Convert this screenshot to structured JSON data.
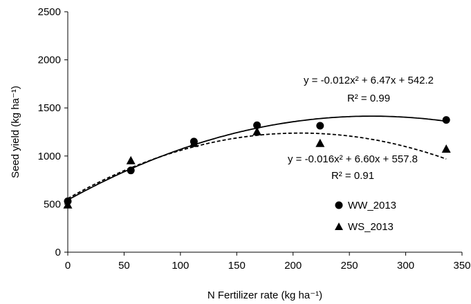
{
  "chart_data": {
    "type": "scatter",
    "xlabel": "N Fertilizer rate (kg ha⁻¹)",
    "ylabel": "Seed yield (kg ha⁻¹)",
    "xlim": [
      0,
      350
    ],
    "ylim": [
      0,
      2500
    ],
    "xticks": [
      0,
      50,
      100,
      150,
      200,
      250,
      300,
      350
    ],
    "yticks": [
      0,
      500,
      1000,
      1500,
      2000,
      2500
    ],
    "grid": false,
    "legend_position": "right-lower",
    "series": [
      {
        "name": "WW_2013",
        "marker": "circle",
        "color": "#000000",
        "x": [
          0,
          56,
          112,
          168,
          224,
          336
        ],
        "y": [
          530,
          850,
          1150,
          1320,
          1315,
          1375
        ],
        "fit": {
          "a": -0.012,
          "b": 6.47,
          "c": 542.2,
          "line": "solid"
        },
        "equation": "y = -0.012x² + 6.47x + 542.2",
        "r2": "R² = 0.99"
      },
      {
        "name": "WS_2013",
        "marker": "triangle",
        "color": "#000000",
        "x": [
          0,
          56,
          112,
          168,
          224,
          336
        ],
        "y": [
          490,
          950,
          1130,
          1250,
          1130,
          1070
        ],
        "fit": {
          "a": -0.016,
          "b": 6.6,
          "c": 557.8,
          "line": "dashed"
        },
        "equation": "y = -0.016x² + 6.60x + 557.8",
        "r2": "R² = 0.91"
      }
    ]
  }
}
